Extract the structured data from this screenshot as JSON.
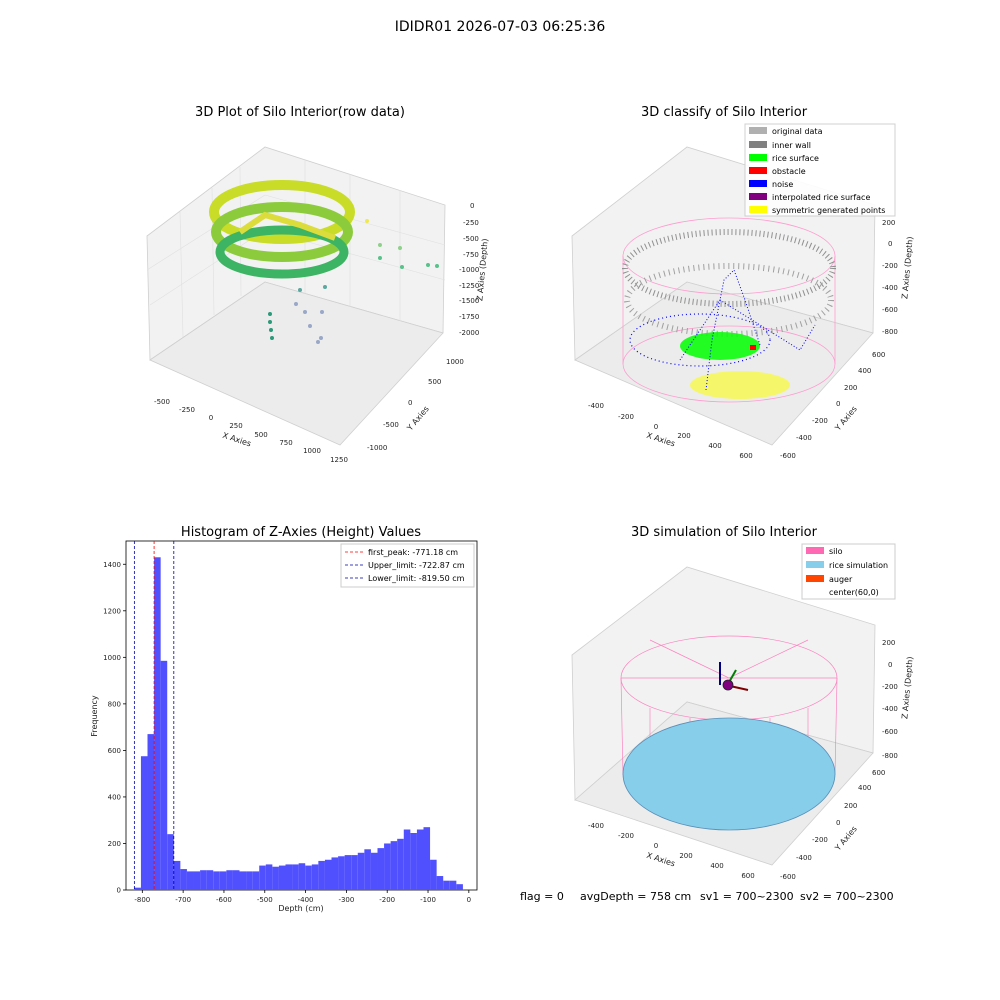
{
  "suptitle": "IDIDR01 2026-07-03 06:25:36",
  "colors": {
    "original": "#b0b0b0",
    "wall": "#808080",
    "rice_surface": "#00ff00",
    "obstacle": "#ff0000",
    "noise": "#0000ff",
    "interp": "#800080",
    "symmetric": "#ffff00",
    "silo": "#ff69b4",
    "rice_sim": "#87ceeb",
    "auger": "#ff4500",
    "hist_bar": "#5050ff"
  },
  "panels": {
    "raw": {
      "title": "3D Plot of Silo Interior(row data)",
      "x_ticks": [
        "-500",
        "-250",
        "0",
        "250",
        "500",
        "750",
        "1000",
        "1250"
      ],
      "y_ticks": [
        "-1000",
        "-500",
        "0",
        "500",
        "1000"
      ],
      "z_ticks": [
        "0",
        "-250",
        "-500",
        "-750",
        "-1000",
        "-1250",
        "-1500",
        "-1750",
        "-2000"
      ],
      "xlabel": "X Axies",
      "ylabel": "Y Axies",
      "zlabel": "Z Axies (Depth)"
    },
    "classify": {
      "title": "3D classify of Silo Interior",
      "legend": [
        "original data",
        "inner wall",
        "rice surface",
        "obstacle",
        "noise",
        "interpolated rice surface",
        "symmetric generated points"
      ],
      "x_ticks": [
        "-400",
        "-200",
        "0",
        "200",
        "400",
        "600"
      ],
      "y_ticks": [
        "-600",
        "-400",
        "-200",
        "0",
        "200",
        "400",
        "600"
      ],
      "z_ticks": [
        "200",
        "0",
        "-200",
        "-400",
        "-600",
        "-800"
      ],
      "xlabel": "X Axies",
      "ylabel": "Y Axies",
      "zlabel": "Z Axies (Depth)"
    },
    "simulation": {
      "title": "3D simulation of Silo Interior",
      "legend": [
        "silo",
        "rice simulation",
        "auger",
        "center(60,0)"
      ],
      "x_ticks": [
        "-400",
        "-200",
        "0",
        "200",
        "400",
        "600"
      ],
      "y_ticks": [
        "-600",
        "-400",
        "-200",
        "0",
        "200",
        "400",
        "600"
      ],
      "z_ticks": [
        "200",
        "0",
        "-200",
        "-400",
        "-600",
        "-800"
      ],
      "xlabel": "X Axies",
      "ylabel": "Y Axies",
      "zlabel": "Z Axies (Depth)"
    }
  },
  "status_line": {
    "flag": "flag = 0",
    "avg_depth": "avgDepth = 758 cm",
    "sv1": "sv1 = 700~2300",
    "sv2": "sv2 = 700~2300"
  },
  "chart_data": {
    "type": "bar",
    "title": "Histogram of Z-Axies (Height) Values",
    "xlabel": "Depth (cm)",
    "ylabel": "Frequency",
    "xlim": [
      -840,
      20
    ],
    "ylim": [
      0,
      1500
    ],
    "x_ticks": [
      -800,
      -700,
      -600,
      -500,
      -400,
      -300,
      -200,
      -100,
      0
    ],
    "y_ticks": [
      0,
      200,
      400,
      600,
      800,
      1000,
      1200,
      1400
    ],
    "bin_start": -819.5,
    "bin_width": 16.1,
    "values": [
      10,
      575,
      670,
      1430,
      985,
      240,
      125,
      90,
      80,
      80,
      85,
      85,
      80,
      80,
      85,
      85,
      80,
      80,
      80,
      105,
      110,
      100,
      105,
      110,
      110,
      115,
      105,
      110,
      125,
      130,
      140,
      145,
      150,
      150,
      160,
      175,
      160,
      180,
      200,
      210,
      220,
      260,
      245,
      260,
      270,
      130,
      60,
      40,
      40,
      25
    ],
    "vlines": [
      {
        "label": "first_peak: -771.18 cm",
        "x": -771.18,
        "color": "#ff0000"
      },
      {
        "label": "Upper_limit: -722.87 cm",
        "x": -722.87,
        "color": "#0000aa"
      },
      {
        "label": "Lower_limit: -819.50 cm",
        "x": -819.5,
        "color": "#0000aa"
      }
    ]
  }
}
